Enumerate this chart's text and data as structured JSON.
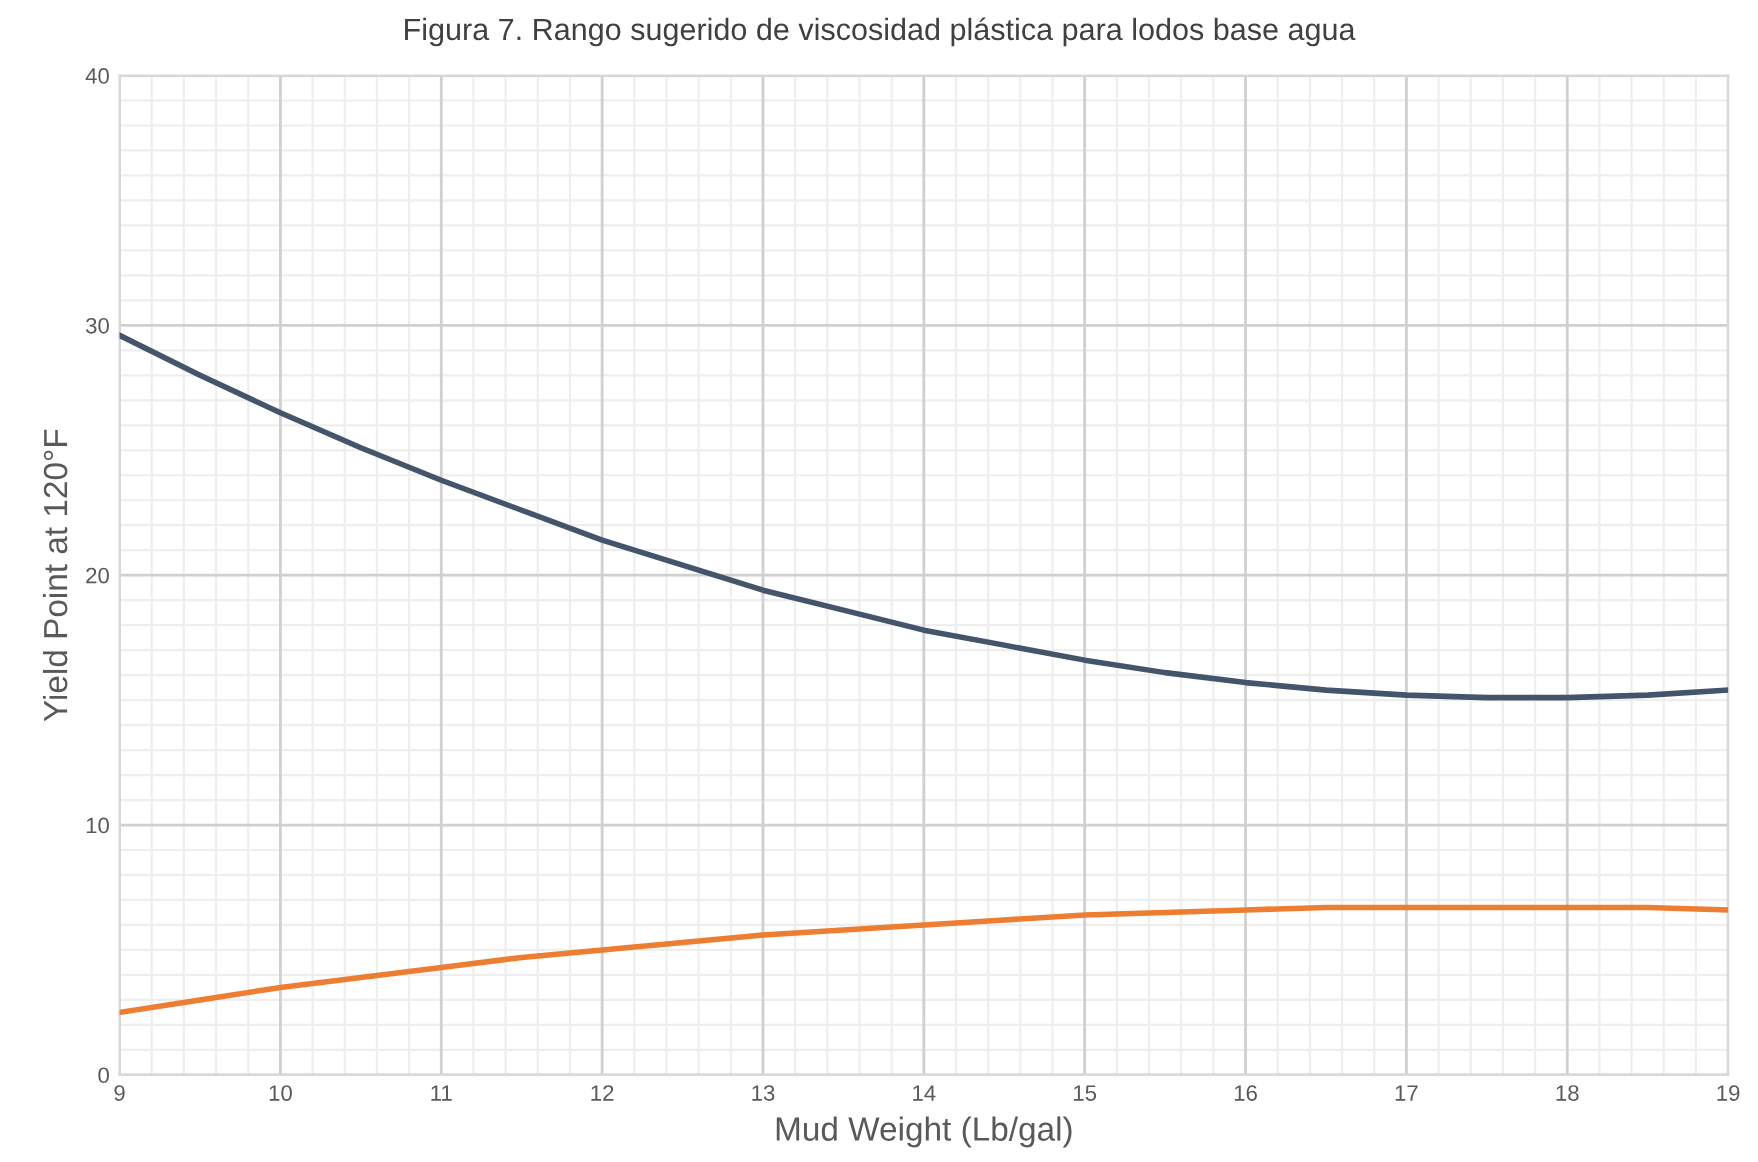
{
  "chart_data": {
    "type": "line",
    "title": "Figura 7. Rango sugerido de viscosidad plástica para lodos base agua",
    "xlabel": "Mud Weight (Lb/gal)",
    "ylabel": "Yield Point at 120°F",
    "x": [
      9,
      9.5,
      10,
      10.5,
      11,
      11.5,
      12,
      12.5,
      13,
      13.5,
      14,
      14.5,
      15,
      15.5,
      16,
      16.5,
      17,
      17.5,
      18,
      18.5,
      19
    ],
    "series": [
      {
        "color": "#44546a",
        "values": [
          29.6,
          28.0,
          26.5,
          25.1,
          23.8,
          22.6,
          21.4,
          20.4,
          19.4,
          18.6,
          17.8,
          17.2,
          16.6,
          16.1,
          15.7,
          15.4,
          15.2,
          15.1,
          15.1,
          15.2,
          15.4
        ]
      },
      {
        "color": "#ed7d31",
        "values": [
          2.5,
          3.0,
          3.5,
          3.9,
          4.3,
          4.7,
          5.0,
          5.3,
          5.6,
          5.8,
          6.0,
          6.2,
          6.4,
          6.5,
          6.6,
          6.7,
          6.7,
          6.7,
          6.7,
          6.7,
          6.6
        ]
      }
    ],
    "xlim": [
      9,
      19
    ],
    "xticks": [
      9,
      10,
      11,
      12,
      13,
      14,
      15,
      16,
      17,
      18,
      19
    ],
    "ylim": [
      0,
      40
    ],
    "yticks": [
      0,
      10,
      20,
      30,
      40
    ],
    "grid": true,
    "marker": "none",
    "line_style": "solid"
  }
}
